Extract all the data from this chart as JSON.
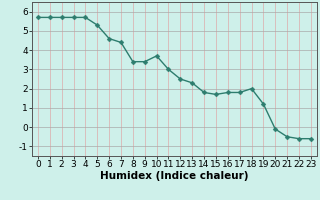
{
  "x": [
    0,
    1,
    2,
    3,
    4,
    5,
    6,
    7,
    8,
    9,
    10,
    11,
    12,
    13,
    14,
    15,
    16,
    17,
    18,
    19,
    20,
    21,
    22,
    23
  ],
  "y": [
    5.7,
    5.7,
    5.7,
    5.7,
    5.7,
    5.3,
    4.6,
    4.4,
    3.4,
    3.4,
    3.7,
    3.0,
    2.5,
    2.3,
    1.8,
    1.7,
    1.8,
    1.8,
    2.0,
    1.2,
    -0.1,
    -0.5,
    -0.6,
    -0.6
  ],
  "line_color": "#2d7d6e",
  "marker_color": "#2d7d6e",
  "bg_color": "#cef0ea",
  "grid_color": "#aaaaaa",
  "grid_color_pink": "#ddaaaa",
  "xlabel": "Humidex (Indice chaleur)",
  "ylim": [
    -1.5,
    6.5
  ],
  "xlim": [
    -0.5,
    23.5
  ],
  "yticks": [
    -1,
    0,
    1,
    2,
    3,
    4,
    5,
    6
  ],
  "xticks": [
    0,
    1,
    2,
    3,
    4,
    5,
    6,
    7,
    8,
    9,
    10,
    11,
    12,
    13,
    14,
    15,
    16,
    17,
    18,
    19,
    20,
    21,
    22,
    23
  ],
  "xlabel_fontsize": 7.5,
  "tick_fontsize": 6.5,
  "linewidth": 1.0,
  "markersize": 2.5
}
